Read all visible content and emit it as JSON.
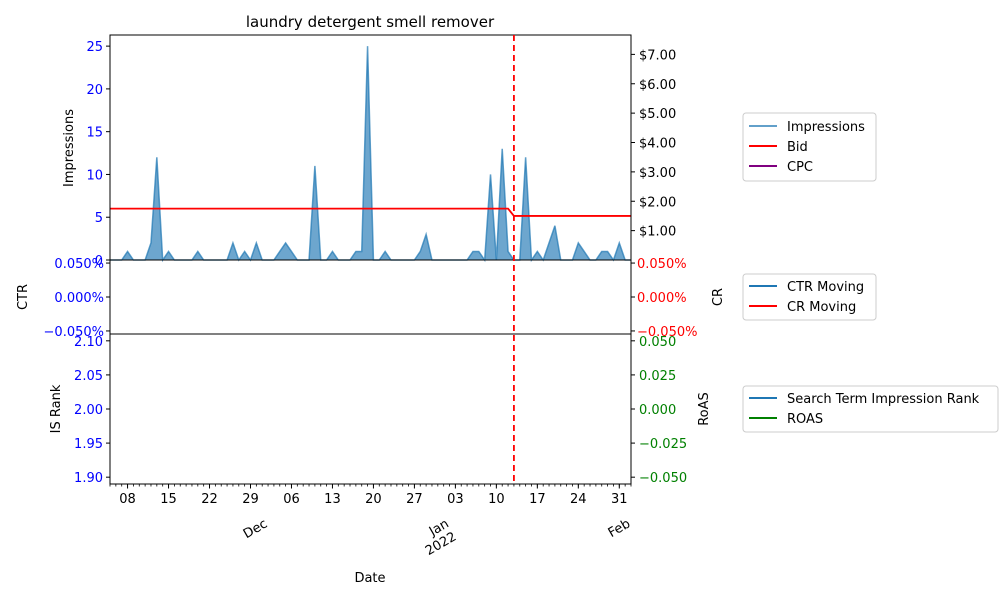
{
  "chart_data": {
    "type": "area",
    "title": "laundry detergent smell remover",
    "xlabel": "Date",
    "x_start": "2021-11-05",
    "x_end": "2022-02-02",
    "x_tick_labels": [
      "08",
      "15",
      "22",
      "29",
      "Dec",
      "06",
      "13",
      "20",
      "27",
      "Jan\n2022",
      "03",
      "10",
      "17",
      "24",
      "31",
      "Feb"
    ],
    "x_tick_dates": [
      "2021-11-08",
      "2021-11-15",
      "2021-11-22",
      "2021-11-29",
      "2021-12-01",
      "2021-12-06",
      "2021-12-13",
      "2021-12-20",
      "2021-12-27",
      "2022-01-01",
      "2022-01-03",
      "2022-01-10",
      "2022-01-17",
      "2022-01-24",
      "2022-01-31",
      "2022-02-01"
    ],
    "date_tick_labels": [
      {
        "date": "2021-11-08",
        "label": "08"
      },
      {
        "date": "2021-11-15",
        "label": "15"
      },
      {
        "date": "2021-11-22",
        "label": "22"
      },
      {
        "date": "2021-11-29",
        "label": "29"
      },
      {
        "date": "2021-12-06",
        "label": "06"
      },
      {
        "date": "2021-12-13",
        "label": "13"
      },
      {
        "date": "2021-12-20",
        "label": "20"
      },
      {
        "date": "2021-12-27",
        "label": "27"
      },
      {
        "date": "2022-01-03",
        "label": "03"
      },
      {
        "date": "2022-01-10",
        "label": "10"
      },
      {
        "date": "2022-01-17",
        "label": "17"
      },
      {
        "date": "2022-01-24",
        "label": "24"
      },
      {
        "date": "2022-01-31",
        "label": "31"
      }
    ],
    "month_labels": [
      {
        "date": "2021-12-01",
        "lines": [
          "Dec"
        ]
      },
      {
        "date": "2022-01-01",
        "lines": [
          "Jan",
          "2022"
        ]
      },
      {
        "date": "2022-02-01",
        "lines": [
          "Feb"
        ]
      }
    ],
    "change_marker_date": "2022-01-13",
    "top_panel": {
      "left_axis_label": "Impressions",
      "left_ylim": [
        0,
        26.3
      ],
      "left_ticks": [
        0,
        5,
        10,
        15,
        20,
        25
      ],
      "right_ylim": [
        0,
        7.66
      ],
      "right_ticks": [
        1,
        2,
        3,
        4,
        5,
        6,
        7
      ],
      "right_tick_labels": [
        "$1.00",
        "$2.00",
        "$3.00",
        "$4.00",
        "$5.00",
        "$6.00",
        "$7.00"
      ],
      "impressions": {
        "name": "Impressions",
        "color": "#1f77b4",
        "points": [
          [
            "2021-11-05",
            0
          ],
          [
            "2021-11-06",
            0
          ],
          [
            "2021-11-07",
            0
          ],
          [
            "2021-11-08",
            1
          ],
          [
            "2021-11-09",
            0
          ],
          [
            "2021-11-10",
            0
          ],
          [
            "2021-11-11",
            0
          ],
          [
            "2021-11-12",
            2
          ],
          [
            "2021-11-13",
            12
          ],
          [
            "2021-11-14",
            0
          ],
          [
            "2021-11-15",
            1
          ],
          [
            "2021-11-16",
            0
          ],
          [
            "2021-11-17",
            0
          ],
          [
            "2021-11-18",
            0
          ],
          [
            "2021-11-19",
            0
          ],
          [
            "2021-11-20",
            1
          ],
          [
            "2021-11-21",
            0
          ],
          [
            "2021-11-22",
            0
          ],
          [
            "2021-11-23",
            0
          ],
          [
            "2021-11-24",
            0
          ],
          [
            "2021-11-25",
            0
          ],
          [
            "2021-11-26",
            2
          ],
          [
            "2021-11-27",
            0
          ],
          [
            "2021-11-28",
            1
          ],
          [
            "2021-11-29",
            0
          ],
          [
            "2021-11-30",
            2
          ],
          [
            "2021-12-01",
            0
          ],
          [
            "2021-12-02",
            0
          ],
          [
            "2021-12-03",
            0
          ],
          [
            "2021-12-04",
            1
          ],
          [
            "2021-12-05",
            2
          ],
          [
            "2021-12-06",
            1
          ],
          [
            "2021-12-07",
            0
          ],
          [
            "2021-12-08",
            0
          ],
          [
            "2021-12-09",
            0
          ],
          [
            "2021-12-10",
            11
          ],
          [
            "2021-12-11",
            0
          ],
          [
            "2021-12-12",
            0
          ],
          [
            "2021-12-13",
            1
          ],
          [
            "2021-12-14",
            0
          ],
          [
            "2021-12-15",
            0
          ],
          [
            "2021-12-16",
            0
          ],
          [
            "2021-12-17",
            1
          ],
          [
            "2021-12-18",
            1
          ],
          [
            "2021-12-19",
            25
          ],
          [
            "2021-12-20",
            0
          ],
          [
            "2021-12-21",
            0
          ],
          [
            "2021-12-22",
            1
          ],
          [
            "2021-12-23",
            0
          ],
          [
            "2021-12-24",
            0
          ],
          [
            "2021-12-25",
            0
          ],
          [
            "2021-12-26",
            0
          ],
          [
            "2021-12-27",
            0
          ],
          [
            "2021-12-28",
            1
          ],
          [
            "2021-12-29",
            3
          ],
          [
            "2021-12-30",
            0
          ],
          [
            "2021-12-31",
            0
          ],
          [
            "2022-01-01",
            0
          ],
          [
            "2022-01-02",
            0
          ],
          [
            "2022-01-03",
            0
          ],
          [
            "2022-01-04",
            0
          ],
          [
            "2022-01-05",
            0
          ],
          [
            "2022-01-06",
            1
          ],
          [
            "2022-01-07",
            1
          ],
          [
            "2022-01-08",
            0
          ],
          [
            "2022-01-09",
            10
          ],
          [
            "2022-01-10",
            0
          ],
          [
            "2022-01-11",
            13
          ],
          [
            "2022-01-12",
            1
          ],
          [
            "2022-01-13",
            0
          ],
          [
            "2022-01-14",
            0
          ],
          [
            "2022-01-15",
            12
          ],
          [
            "2022-01-16",
            0
          ],
          [
            "2022-01-17",
            1
          ],
          [
            "2022-01-18",
            0
          ],
          [
            "2022-01-19",
            2
          ],
          [
            "2022-01-20",
            4
          ],
          [
            "2022-01-21",
            0
          ],
          [
            "2022-01-22",
            0
          ],
          [
            "2022-01-23",
            0
          ],
          [
            "2022-01-24",
            2
          ],
          [
            "2022-01-25",
            1
          ],
          [
            "2022-01-26",
            0
          ],
          [
            "2022-01-27",
            0
          ],
          [
            "2022-01-28",
            1
          ],
          [
            "2022-01-29",
            1
          ],
          [
            "2022-01-30",
            0
          ],
          [
            "2022-01-31",
            2
          ],
          [
            "2022-02-01",
            0
          ],
          [
            "2022-02-02",
            0
          ]
        ]
      },
      "bid": {
        "name": "Bid",
        "color": "#ff0000",
        "points": [
          [
            "2021-11-05",
            1.75
          ],
          [
            "2022-01-12",
            1.75
          ],
          [
            "2022-01-13",
            1.5
          ],
          [
            "2022-02-02",
            1.5
          ]
        ]
      },
      "cpc": {
        "name": "CPC",
        "color": "#800080",
        "points": []
      }
    },
    "middle_panel": {
      "left_axis_label": "CTR",
      "right_axis_label": "CR",
      "left_tick_labels": [
        "0.050%",
        "0.000%",
        "−0.050%"
      ],
      "right_tick_labels": [
        "0.050%",
        "0.000%",
        "−0.050%"
      ],
      "ylim": [
        -0.05,
        0.05
      ],
      "series": [
        {
          "name": "CTR Moving",
          "color": "#1f77b4",
          "points": []
        },
        {
          "name": "CR Moving",
          "color": "#ff0000",
          "points": []
        }
      ]
    },
    "bottom_panel": {
      "left_axis_label": "IS Rank",
      "right_axis_label": "RoAS",
      "left_ylim": [
        1.89,
        2.11
      ],
      "left_ticks": [
        1.9,
        1.95,
        2.0,
        2.05,
        2.1
      ],
      "left_tick_labels": [
        "1.90",
        "1.95",
        "2.00",
        "2.05",
        "2.10"
      ],
      "right_ylim": [
        -0.055,
        0.055
      ],
      "right_ticks": [
        -0.05,
        -0.025,
        0.0,
        0.025,
        0.05
      ],
      "right_tick_labels": [
        "−0.050",
        "−0.025",
        "0.000",
        "0.025",
        "0.050"
      ],
      "series": [
        {
          "name": "Search Term Impression Rank",
          "color": "#1f77b4",
          "points": []
        },
        {
          "name": "ROAS",
          "color": "#008000",
          "points": []
        }
      ]
    },
    "colors": {
      "left_axis": "#0000ff",
      "cr_axis": "#ff0000",
      "roas_axis": "#008000",
      "marker": "#ff0000"
    }
  }
}
